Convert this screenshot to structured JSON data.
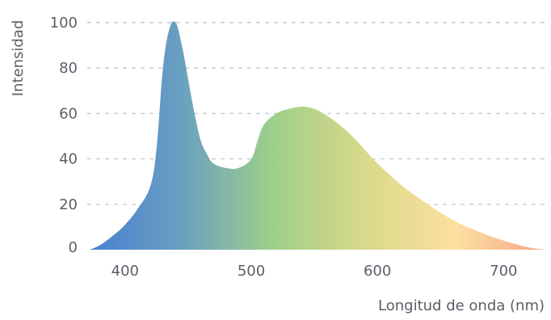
{
  "chart_data": {
    "type": "area",
    "title": "",
    "xlabel": "Longitud de onda (nm)",
    "ylabel": "Intensidad",
    "xlim": [
      370,
      735
    ],
    "ylim": [
      0,
      100
    ],
    "x_ticks": [
      400,
      500,
      600,
      700
    ],
    "x_tick_labels": [
      "400",
      "500",
      "600",
      "700"
    ],
    "y_ticks": [
      0,
      20,
      40,
      60,
      80,
      100
    ],
    "y_tick_labels": [
      "0",
      "20",
      "40",
      "60",
      "80",
      "100"
    ],
    "grid": "horizontal dashed",
    "legend": "none",
    "fill": "visible-spectrum gradient",
    "gradient_colors": [
      "#4a7fd4",
      "#6aa0c0",
      "#9ecf8a",
      "#d9d98a",
      "#fde0a0",
      "#f2a38c"
    ],
    "series": [
      {
        "x": [
          372,
          380,
          390,
          400,
          410,
          420,
          425,
          430,
          435,
          440,
          445,
          450,
          455,
          460,
          465,
          470,
          480,
          490,
          500,
          505,
          510,
          520,
          530,
          540,
          550,
          560,
          570,
          580,
          590,
          600,
          620,
          640,
          660,
          680,
          700,
          720,
          735
        ],
        "y": [
          0,
          2,
          6,
          11,
          18,
          28,
          45,
          80,
          97,
          100,
          90,
          75,
          60,
          48,
          42,
          38,
          36,
          36,
          40,
          48,
          55,
          60,
          62,
          63,
          62,
          59,
          55,
          50,
          44,
          38,
          28,
          20,
          13,
          8,
          4,
          1,
          0
        ]
      }
    ]
  }
}
